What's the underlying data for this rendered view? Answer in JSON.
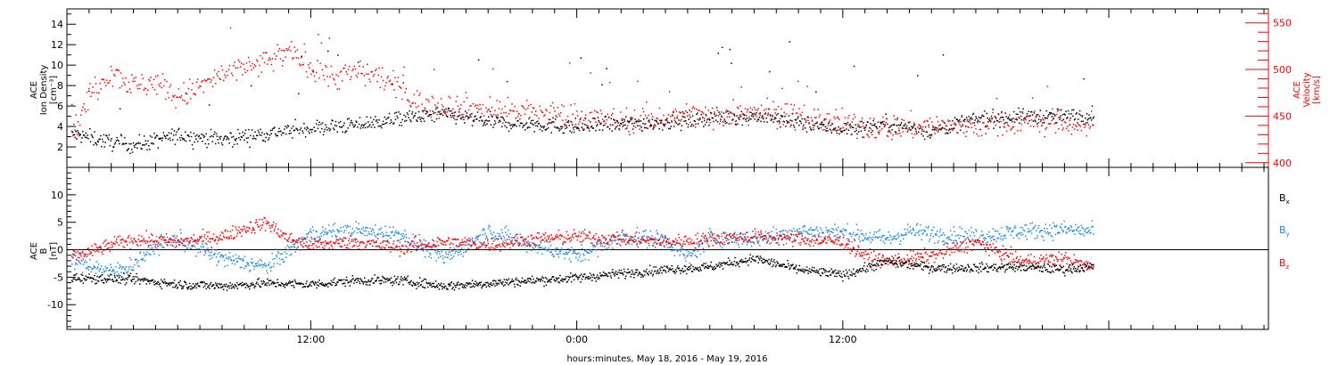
{
  "colors": {
    "black": "#000000",
    "red": "#ff0000",
    "blue": "#1e88e5"
  },
  "xlabel": "hours:minutes, May 18, 2016 - May 19, 2016",
  "x_ticks": [
    "12:00",
    "0:00",
    "12:00"
  ],
  "chart_data": [
    {
      "type": "scatter",
      "ylabel": [
        "ACE",
        "Ion Density",
        "[cm⁻³]"
      ],
      "ylim": [
        0,
        15.5
      ],
      "y_ticks": [
        "2",
        "4",
        "6",
        "8",
        "10",
        "12",
        "14"
      ],
      "y2label": [
        "ACE",
        "Velocity",
        "[km/s]"
      ],
      "y2lim": [
        395,
        565
      ],
      "y2_ticks": [
        "400",
        "450",
        "500",
        "550"
      ],
      "xlim_hours": [
        1.0,
        55.2
      ],
      "density_trend": [
        [
          1.5,
          3.2
        ],
        [
          3,
          2.5
        ],
        [
          4,
          2.2
        ],
        [
          6,
          3.2
        ],
        [
          8,
          2.8
        ],
        [
          10,
          3.4
        ],
        [
          12,
          3.9
        ],
        [
          14,
          4.2
        ],
        [
          16,
          4.8
        ],
        [
          18,
          5.3
        ],
        [
          20,
          4.5
        ],
        [
          22,
          4.3
        ],
        [
          24,
          4.0
        ],
        [
          26,
          4.3
        ],
        [
          28,
          4.5
        ],
        [
          29,
          4.7
        ],
        [
          30,
          4.9
        ],
        [
          32,
          5.1
        ],
        [
          34,
          4.4
        ],
        [
          36,
          3.8
        ],
        [
          38,
          4.3
        ],
        [
          40,
          3.6
        ],
        [
          42,
          4.8
        ],
        [
          44,
          5.0
        ],
        [
          46,
          5.0
        ],
        [
          47,
          5.2
        ]
      ],
      "velocity_trend": [
        [
          1.5,
          440
        ],
        [
          2,
          475
        ],
        [
          3,
          500
        ],
        [
          4,
          482
        ],
        [
          5,
          488
        ],
        [
          6,
          470
        ],
        [
          8,
          495
        ],
        [
          10,
          508
        ],
        [
          11,
          520
        ],
        [
          12,
          505
        ],
        [
          13,
          492
        ],
        [
          14,
          498
        ],
        [
          15,
          495
        ],
        [
          16,
          478
        ],
        [
          17,
          462
        ],
        [
          18,
          462
        ],
        [
          20,
          458
        ],
        [
          22,
          455
        ],
        [
          24,
          450
        ],
        [
          26,
          445
        ],
        [
          28,
          448
        ],
        [
          29,
          452
        ],
        [
          30,
          450
        ],
        [
          32,
          458
        ],
        [
          34,
          450
        ],
        [
          36,
          442
        ],
        [
          38,
          438
        ],
        [
          40,
          440
        ],
        [
          42,
          440
        ],
        [
          44,
          445
        ],
        [
          46,
          442
        ],
        [
          47,
          440
        ]
      ]
    },
    {
      "type": "scatter",
      "ylabel": [
        "ACE",
        "B",
        "[nT]"
      ],
      "ylim": [
        -14.5,
        15
      ],
      "y_ticks": [
        "-10",
        "-5",
        "0",
        "5",
        "10"
      ],
      "xlim_hours": [
        1.0,
        55.2
      ],
      "legend": [
        "Bx",
        "By",
        "Bz"
      ],
      "bx_trend": [
        [
          1.5,
          -5.0
        ],
        [
          4,
          -5.3
        ],
        [
          6,
          -6.2
        ],
        [
          8,
          -6.5
        ],
        [
          10,
          -6.0
        ],
        [
          12,
          -6.2
        ],
        [
          14,
          -5.5
        ],
        [
          16,
          -5.5
        ],
        [
          18,
          -6.5
        ],
        [
          20,
          -6.0
        ],
        [
          22,
          -5.5
        ],
        [
          24,
          -5.0
        ],
        [
          26,
          -4.2
        ],
        [
          28,
          -3.5
        ],
        [
          30,
          -3.0
        ],
        [
          32,
          -1.5
        ],
        [
          34,
          -3.5
        ],
        [
          36,
          -4.5
        ],
        [
          38,
          -2.0
        ],
        [
          40,
          -3.2
        ],
        [
          42,
          -3.2
        ],
        [
          44,
          -3.0
        ],
        [
          46,
          -3.5
        ],
        [
          47,
          -3.0
        ]
      ],
      "by_trend": [
        [
          1.5,
          -2.0
        ],
        [
          3,
          -4.0
        ],
        [
          4,
          -2.5
        ],
        [
          5,
          1.0
        ],
        [
          6,
          2.0
        ],
        [
          8,
          -1.5
        ],
        [
          10,
          -3.0
        ],
        [
          12,
          3.0
        ],
        [
          14,
          3.5
        ],
        [
          16,
          3.0
        ],
        [
          18,
          -1.5
        ],
        [
          20,
          3.5
        ],
        [
          22,
          1.0
        ],
        [
          24,
          -1.0
        ],
        [
          26,
          2.5
        ],
        [
          28,
          2.0
        ],
        [
          29,
          -1.5
        ],
        [
          30,
          2.5
        ],
        [
          32,
          2.0
        ],
        [
          34,
          3.5
        ],
        [
          36,
          3.2
        ],
        [
          38,
          2.0
        ],
        [
          39,
          3.5
        ],
        [
          40,
          3.0
        ],
        [
          42,
          2.5
        ],
        [
          44,
          3.5
        ],
        [
          46,
          3.8
        ],
        [
          47,
          3.5
        ]
      ],
      "bz_trend": [
        [
          1.5,
          -1.0
        ],
        [
          3,
          1.0
        ],
        [
          4,
          2.0
        ],
        [
          6,
          1.5
        ],
        [
          8,
          2.5
        ],
        [
          9,
          4.0
        ],
        [
          10,
          5.0
        ],
        [
          11,
          2.0
        ],
        [
          12,
          1.0
        ],
        [
          14,
          1.5
        ],
        [
          16,
          0.5
        ],
        [
          18,
          1.5
        ],
        [
          20,
          1.0
        ],
        [
          22,
          2.0
        ],
        [
          24,
          2.5
        ],
        [
          26,
          2.0
        ],
        [
          28,
          1.5
        ],
        [
          30,
          2.0
        ],
        [
          32,
          2.5
        ],
        [
          34,
          2.0
        ],
        [
          36,
          1.5
        ],
        [
          37,
          -1.0
        ],
        [
          38,
          -2.0
        ],
        [
          40,
          -1.0
        ],
        [
          42,
          1.5
        ],
        [
          44,
          -2.0
        ],
        [
          46,
          -1.5
        ],
        [
          47,
          -3.0
        ]
      ]
    }
  ]
}
